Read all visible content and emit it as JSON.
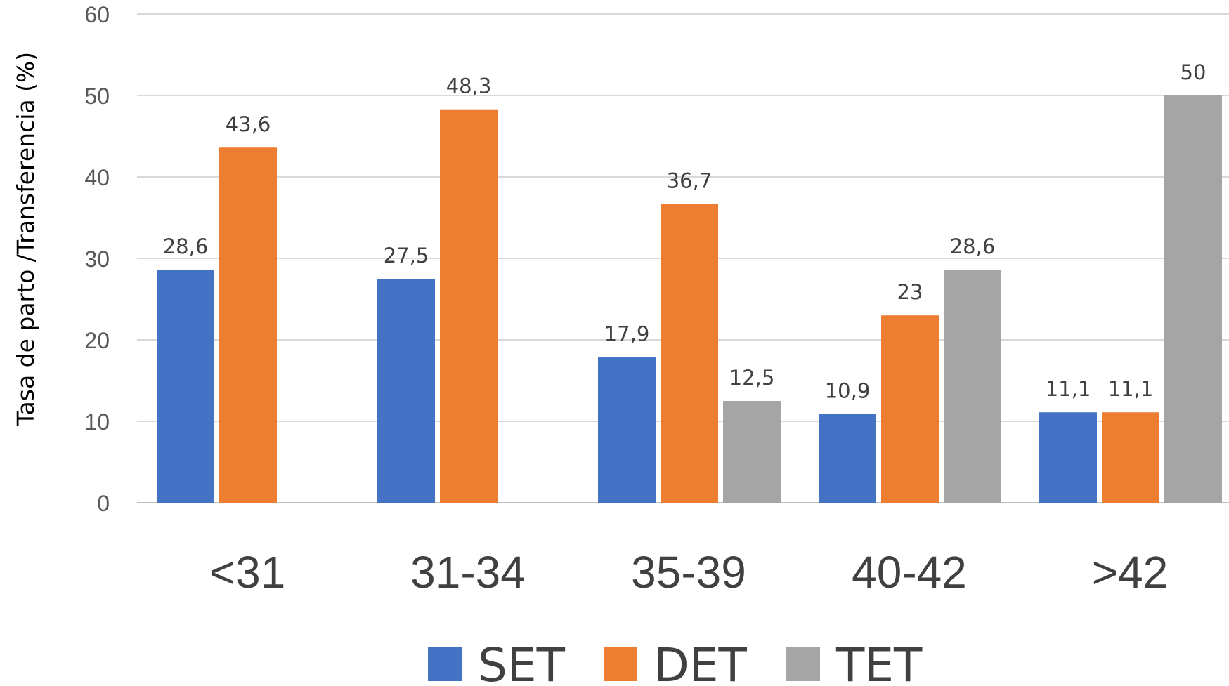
{
  "chart_data": {
    "type": "bar",
    "title": "",
    "xlabel": "",
    "ylabel": "Tasa de parto /Transferencia (%)",
    "ylim": [
      0,
      60
    ],
    "yticks": [
      "0",
      "10",
      "20",
      "30",
      "40",
      "50",
      "60"
    ],
    "grid": true,
    "legend_position": "bottom",
    "categories": [
      "<31",
      "31-34",
      "35-39",
      "40-42",
      ">42"
    ],
    "series": [
      {
        "name": "SET",
        "color": "#4472C4",
        "values": [
          28.6,
          27.5,
          17.9,
          10.9,
          11.1
        ],
        "labels": [
          "28,6",
          "27,5",
          "17,9",
          "10,9",
          "11,1"
        ]
      },
      {
        "name": "DET",
        "color": "#ED7D31",
        "values": [
          43.6,
          48.3,
          36.7,
          23,
          11.1
        ],
        "labels": [
          "43,6",
          "48,3",
          "36,7",
          "23",
          "11,1"
        ]
      },
      {
        "name": "TET",
        "color": "#A5A5A5",
        "values": [
          null,
          null,
          12.5,
          28.6,
          50
        ],
        "labels": [
          null,
          null,
          "12,5",
          "28,6",
          "50"
        ]
      }
    ]
  }
}
